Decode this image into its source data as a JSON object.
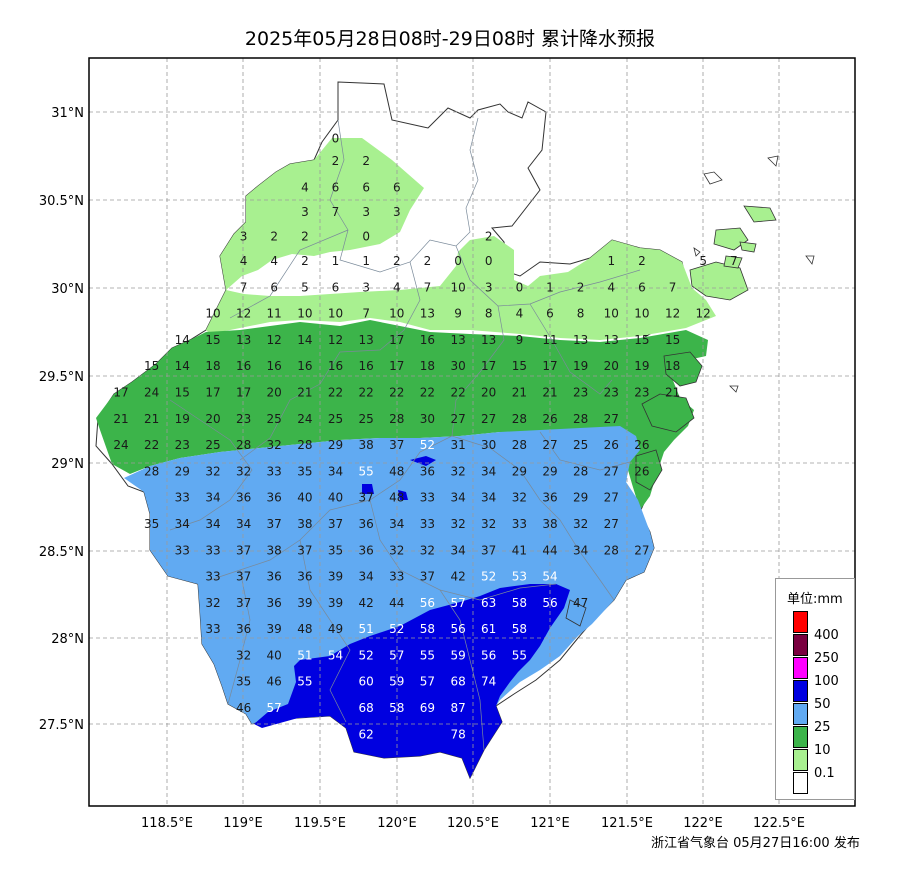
{
  "title": "2025年05月28日08时-29日08时 累计降水预报",
  "footer": "浙江省气象台 05月27日16:00 发布",
  "axes": {
    "lon_ticks": [
      "118.5°E",
      "119°E",
      "119.5°E",
      "120°E",
      "120.5°E",
      "121°E",
      "121.5°E",
      "122°E",
      "122.5°E"
    ],
    "lat_ticks": [
      "31°N",
      "30.5°N",
      "30°N",
      "29.5°N",
      "29°N",
      "28.5°N",
      "28°N",
      "27.5°N"
    ]
  },
  "legend": {
    "title": "单位:mm",
    "items": [
      {
        "label": "400",
        "color": "#ff0000"
      },
      {
        "label": "250",
        "color": "#7a0040"
      },
      {
        "label": "100",
        "color": "#ff00ff"
      },
      {
        "label": "50",
        "color": "#0000e0"
      },
      {
        "label": "25",
        "color": "#61aaf2"
      },
      {
        "label": "10",
        "color": "#3cb44a"
      },
      {
        "label": "0.1",
        "color": "#a8f090"
      },
      {
        "label": "",
        "color": "#ffffff"
      }
    ]
  },
  "chart_data": {
    "type": "heatmap",
    "title": "2025年05月28日08时-29日08时 累计降水预报",
    "unit": "mm",
    "grid_step_deg": 0.1,
    "x_range_lon": [
      118.0,
      122.75
    ],
    "y_range_lat": [
      27.0,
      31.3
    ],
    "rows": [
      {
        "lat": 30.85,
        "values": [
          [
            119.6,
            0
          ]
        ]
      },
      {
        "lat": 30.72,
        "values": [
          [
            119.6,
            2
          ],
          [
            119.8,
            2
          ]
        ]
      },
      {
        "lat": 30.57,
        "values": [
          [
            119.4,
            4
          ],
          [
            119.6,
            6
          ],
          [
            119.8,
            6
          ],
          [
            120.0,
            6
          ]
        ]
      },
      {
        "lat": 30.43,
        "values": [
          [
            119.4,
            3
          ],
          [
            119.6,
            7
          ],
          [
            119.8,
            3
          ],
          [
            120.0,
            3
          ]
        ]
      },
      {
        "lat": 30.29,
        "values": [
          [
            119.0,
            3
          ],
          [
            119.2,
            2
          ],
          [
            119.4,
            2
          ],
          [
            119.8,
            0
          ],
          [
            120.6,
            2
          ]
        ]
      },
      {
        "lat": 30.15,
        "values": [
          [
            119.0,
            4
          ],
          [
            119.2,
            4
          ],
          [
            119.4,
            2
          ],
          [
            119.6,
            1
          ],
          [
            119.8,
            1
          ],
          [
            120.0,
            2
          ],
          [
            120.2,
            2
          ],
          [
            120.4,
            0
          ],
          [
            120.6,
            0
          ],
          [
            121.4,
            1
          ],
          [
            121.6,
            2
          ],
          [
            122.0,
            5
          ],
          [
            122.2,
            7
          ]
        ]
      },
      {
        "lat": 30.0,
        "values": [
          [
            119.0,
            7
          ],
          [
            119.2,
            6
          ],
          [
            119.4,
            5
          ],
          [
            119.6,
            6
          ],
          [
            119.8,
            3
          ],
          [
            120.0,
            4
          ],
          [
            120.2,
            7
          ],
          [
            120.4,
            10
          ],
          [
            120.6,
            3
          ],
          [
            120.8,
            0
          ],
          [
            121.0,
            1
          ],
          [
            121.2,
            2
          ],
          [
            121.4,
            4
          ],
          [
            121.6,
            6
          ],
          [
            121.8,
            7
          ]
        ]
      },
      {
        "lat": 29.85,
        "values": [
          [
            118.8,
            10
          ],
          [
            119.0,
            12
          ],
          [
            119.2,
            11
          ],
          [
            119.4,
            10
          ],
          [
            119.6,
            10
          ],
          [
            119.8,
            7
          ],
          [
            120.0,
            10
          ],
          [
            120.2,
            13
          ],
          [
            120.4,
            9
          ],
          [
            120.6,
            8
          ],
          [
            120.8,
            4
          ],
          [
            121.0,
            6
          ],
          [
            121.2,
            8
          ],
          [
            121.4,
            10
          ],
          [
            121.6,
            10
          ],
          [
            121.8,
            12
          ],
          [
            122.0,
            12
          ]
        ]
      },
      {
        "lat": 29.7,
        "values": [
          [
            118.6,
            14
          ],
          [
            118.8,
            15
          ],
          [
            119.0,
            13
          ],
          [
            119.2,
            12
          ],
          [
            119.4,
            14
          ],
          [
            119.6,
            12
          ],
          [
            119.8,
            13
          ],
          [
            120.0,
            17
          ],
          [
            120.2,
            16
          ],
          [
            120.4,
            13
          ],
          [
            120.6,
            13
          ],
          [
            120.8,
            9
          ],
          [
            121.0,
            11
          ],
          [
            121.2,
            13
          ],
          [
            121.4,
            13
          ],
          [
            121.6,
            15
          ],
          [
            121.8,
            15
          ]
        ]
      },
      {
        "lat": 29.55,
        "values": [
          [
            118.4,
            15
          ],
          [
            118.6,
            14
          ],
          [
            118.8,
            18
          ],
          [
            119.0,
            16
          ],
          [
            119.2,
            16
          ],
          [
            119.4,
            16
          ],
          [
            119.6,
            16
          ],
          [
            119.8,
            16
          ],
          [
            120.0,
            17
          ],
          [
            120.2,
            18
          ],
          [
            120.4,
            30
          ],
          [
            120.6,
            17
          ],
          [
            120.8,
            15
          ],
          [
            121.0,
            17
          ],
          [
            121.2,
            19
          ],
          [
            121.4,
            20
          ],
          [
            121.6,
            19
          ],
          [
            121.8,
            18
          ]
        ]
      },
      {
        "lat": 29.4,
        "values": [
          [
            118.2,
            17
          ],
          [
            118.4,
            24
          ],
          [
            118.6,
            15
          ],
          [
            118.8,
            17
          ],
          [
            119.0,
            17
          ],
          [
            119.2,
            20
          ],
          [
            119.4,
            21
          ],
          [
            119.6,
            22
          ],
          [
            119.8,
            22
          ],
          [
            120.0,
            22
          ],
          [
            120.2,
            22
          ],
          [
            120.4,
            22
          ],
          [
            120.6,
            20
          ],
          [
            120.8,
            21
          ],
          [
            121.0,
            21
          ],
          [
            121.2,
            23
          ],
          [
            121.4,
            23
          ],
          [
            121.6,
            23
          ],
          [
            121.8,
            21
          ]
        ]
      },
      {
        "lat": 29.25,
        "values": [
          [
            118.2,
            21
          ],
          [
            118.4,
            21
          ],
          [
            118.6,
            19
          ],
          [
            118.8,
            20
          ],
          [
            119.0,
            23
          ],
          [
            119.2,
            25
          ],
          [
            119.4,
            24
          ],
          [
            119.6,
            25
          ],
          [
            119.8,
            25
          ],
          [
            120.0,
            28
          ],
          [
            120.2,
            30
          ],
          [
            120.4,
            27
          ],
          [
            120.6,
            27
          ],
          [
            120.8,
            28
          ],
          [
            121.0,
            26
          ],
          [
            121.2,
            28
          ],
          [
            121.4,
            27
          ]
        ]
      },
      {
        "lat": 29.1,
        "values": [
          [
            118.2,
            24
          ],
          [
            118.4,
            22
          ],
          [
            118.6,
            23
          ],
          [
            118.8,
            25
          ],
          [
            119.0,
            28
          ],
          [
            119.2,
            32
          ],
          [
            119.4,
            28
          ],
          [
            119.6,
            29
          ],
          [
            119.8,
            38
          ],
          [
            120.0,
            37
          ],
          [
            120.2,
            52
          ],
          [
            120.4,
            31
          ],
          [
            120.6,
            30
          ],
          [
            120.8,
            28
          ],
          [
            121.0,
            27
          ],
          [
            121.2,
            25
          ],
          [
            121.4,
            26
          ],
          [
            121.6,
            26
          ]
        ]
      },
      {
        "lat": 28.95,
        "values": [
          [
            118.4,
            28
          ],
          [
            118.6,
            29
          ],
          [
            118.8,
            32
          ],
          [
            119.0,
            32
          ],
          [
            119.2,
            33
          ],
          [
            119.4,
            35
          ],
          [
            119.6,
            34
          ],
          [
            119.8,
            55
          ],
          [
            120.0,
            48
          ],
          [
            120.2,
            36
          ],
          [
            120.4,
            32
          ],
          [
            120.6,
            34
          ],
          [
            120.8,
            29
          ],
          [
            121.0,
            29
          ],
          [
            121.2,
            28
          ],
          [
            121.4,
            27
          ],
          [
            121.6,
            26
          ]
        ]
      },
      {
        "lat": 28.8,
        "values": [
          [
            118.6,
            33
          ],
          [
            118.8,
            34
          ],
          [
            119.0,
            36
          ],
          [
            119.2,
            36
          ],
          [
            119.4,
            40
          ],
          [
            119.6,
            40
          ],
          [
            119.8,
            37
          ],
          [
            120.0,
            48
          ],
          [
            120.2,
            33
          ],
          [
            120.4,
            34
          ],
          [
            120.6,
            34
          ],
          [
            120.8,
            32
          ],
          [
            121.0,
            36
          ],
          [
            121.2,
            29
          ],
          [
            121.4,
            27
          ]
        ]
      },
      {
        "lat": 28.65,
        "values": [
          [
            118.4,
            35
          ],
          [
            118.6,
            34
          ],
          [
            118.8,
            34
          ],
          [
            119.0,
            34
          ],
          [
            119.2,
            37
          ],
          [
            119.4,
            38
          ],
          [
            119.6,
            37
          ],
          [
            119.8,
            36
          ],
          [
            120.0,
            34
          ],
          [
            120.2,
            33
          ],
          [
            120.4,
            32
          ],
          [
            120.6,
            32
          ],
          [
            120.8,
            33
          ],
          [
            121.0,
            38
          ],
          [
            121.2,
            32
          ],
          [
            121.4,
            27
          ]
        ]
      },
      {
        "lat": 28.5,
        "values": [
          [
            118.6,
            33
          ],
          [
            118.8,
            33
          ],
          [
            119.0,
            37
          ],
          [
            119.2,
            38
          ],
          [
            119.4,
            37
          ],
          [
            119.6,
            35
          ],
          [
            119.8,
            36
          ],
          [
            120.0,
            32
          ],
          [
            120.2,
            32
          ],
          [
            120.4,
            34
          ],
          [
            120.6,
            37
          ],
          [
            120.8,
            41
          ],
          [
            121.0,
            44
          ],
          [
            121.2,
            34
          ],
          [
            121.4,
            28
          ],
          [
            121.6,
            27
          ]
        ]
      },
      {
        "lat": 28.35,
        "values": [
          [
            118.8,
            33
          ],
          [
            119.0,
            37
          ],
          [
            119.2,
            36
          ],
          [
            119.4,
            36
          ],
          [
            119.6,
            39
          ],
          [
            119.8,
            34
          ],
          [
            120.0,
            33
          ],
          [
            120.2,
            37
          ],
          [
            120.4,
            42
          ],
          [
            120.6,
            52
          ],
          [
            120.8,
            53
          ],
          [
            121.0,
            54
          ]
        ]
      },
      {
        "lat": 28.2,
        "values": [
          [
            118.8,
            32
          ],
          [
            119.0,
            37
          ],
          [
            119.2,
            36
          ],
          [
            119.4,
            39
          ],
          [
            119.6,
            39
          ],
          [
            119.8,
            42
          ],
          [
            120.0,
            44
          ],
          [
            120.2,
            56
          ],
          [
            120.4,
            57
          ],
          [
            120.6,
            63
          ],
          [
            120.8,
            58
          ],
          [
            121.0,
            56
          ],
          [
            121.2,
            47
          ]
        ]
      },
      {
        "lat": 28.05,
        "values": [
          [
            118.8,
            33
          ],
          [
            119.0,
            36
          ],
          [
            119.2,
            39
          ],
          [
            119.4,
            48
          ],
          [
            119.6,
            49
          ],
          [
            119.8,
            51
          ],
          [
            120.0,
            52
          ],
          [
            120.2,
            58
          ],
          [
            120.4,
            56
          ],
          [
            120.6,
            61
          ],
          [
            120.8,
            58
          ]
        ]
      },
      {
        "lat": 27.9,
        "values": [
          [
            119.0,
            32
          ],
          [
            119.2,
            40
          ],
          [
            119.4,
            51
          ],
          [
            119.6,
            54
          ],
          [
            119.8,
            52
          ],
          [
            120.0,
            57
          ],
          [
            120.2,
            55
          ],
          [
            120.4,
            59
          ],
          [
            120.6,
            56
          ],
          [
            120.8,
            55
          ]
        ]
      },
      {
        "lat": 27.75,
        "values": [
          [
            119.0,
            35
          ],
          [
            119.2,
            46
          ],
          [
            119.4,
            55
          ],
          [
            119.8,
            60
          ],
          [
            120.0,
            59
          ],
          [
            120.2,
            57
          ],
          [
            120.4,
            68
          ],
          [
            120.6,
            74
          ]
        ]
      },
      {
        "lat": 27.6,
        "values": [
          [
            119.0,
            46
          ],
          [
            119.2,
            57
          ],
          [
            119.8,
            68
          ],
          [
            120.0,
            58
          ],
          [
            120.2,
            69
          ],
          [
            120.4,
            87
          ]
        ]
      },
      {
        "lat": 27.45,
        "values": [
          [
            119.8,
            62
          ],
          [
            120.4,
            78
          ]
        ]
      }
    ]
  }
}
